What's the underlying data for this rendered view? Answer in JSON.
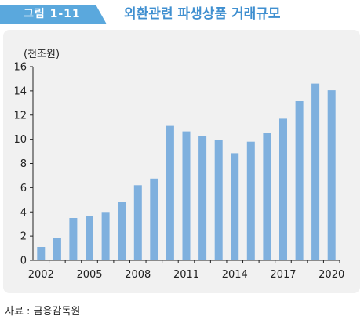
{
  "header": {
    "figure_label": "그림 1-11",
    "title": "외환관련 파생상품 거래규모"
  },
  "source": "자료 : 금융감독원",
  "colors": {
    "accent": "#5aa8dd",
    "title": "#3f8fd0",
    "bar": "#7fb0de",
    "panel": "#f1f1f1"
  },
  "chart_data": {
    "type": "bar",
    "unit_label": "(천조원)",
    "x": [
      2002,
      2003,
      2004,
      2005,
      2006,
      2007,
      2008,
      2009,
      2010,
      2011,
      2012,
      2013,
      2014,
      2015,
      2016,
      2017,
      2018,
      2019,
      2020
    ],
    "values": [
      1.1,
      1.85,
      3.5,
      3.65,
      4.0,
      4.8,
      6.2,
      6.75,
      11.1,
      10.65,
      10.3,
      9.95,
      8.85,
      9.8,
      10.5,
      11.7,
      13.15,
      14.6,
      14.05
    ],
    "xticks": [
      "2002",
      "2005",
      "2008",
      "2011",
      "2014",
      "2017",
      "2020"
    ],
    "yticks": [
      "0",
      "2",
      "4",
      "6",
      "8",
      "10",
      "12",
      "14",
      "16"
    ],
    "ylim": [
      0,
      16
    ],
    "grid": false,
    "legend": "none"
  }
}
